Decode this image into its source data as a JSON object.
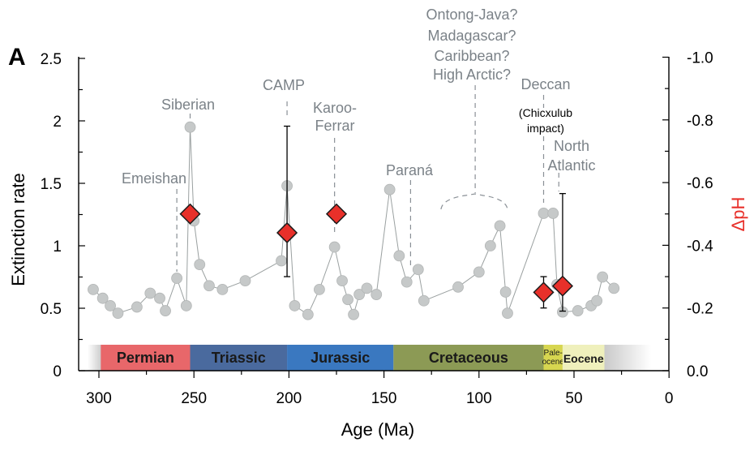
{
  "chart_data": {
    "type": "scatter",
    "panel_label": "A",
    "xlabel": "Age (Ma)",
    "ylabel_left": "Extinction rate",
    "ylabel_right": "ΔpH",
    "xlim": [
      305,
      0
    ],
    "ylim_left": [
      0,
      2.5
    ],
    "ylim_right": [
      0.0,
      -1.0
    ],
    "x_ticks": [
      300,
      250,
      200,
      150,
      100,
      50,
      0
    ],
    "y_left_ticks": [
      0,
      0.5,
      1,
      1.5,
      2,
      2.5
    ],
    "y_left_tick_labels": [
      "0",
      "0.5",
      "1",
      "1.5",
      "2",
      "2.5"
    ],
    "y_right_ticks": [
      0.0,
      -0.2,
      -0.4,
      -0.6,
      -0.8,
      -1.0
    ],
    "y_right_tick_labels": [
      "0.0",
      "-0.2",
      "-0.4",
      "-0.6",
      "-0.8",
      "-1.0"
    ],
    "series": [
      {
        "kind": "extinction_rate",
        "color": "#c6c9c9",
        "points": [
          [
            303,
            0.65
          ],
          [
            298,
            0.58
          ],
          [
            294,
            0.52
          ],
          [
            290,
            0.46
          ],
          [
            280,
            0.51
          ],
          [
            273,
            0.62
          ],
          [
            268,
            0.58
          ],
          [
            265,
            0.48
          ],
          [
            259,
            0.74
          ],
          [
            254,
            0.52
          ],
          [
            252,
            1.95
          ],
          [
            250,
            1.2
          ],
          [
            247,
            0.85
          ],
          [
            242,
            0.68
          ],
          [
            235,
            0.65
          ],
          [
            223,
            0.72
          ],
          [
            204,
            0.88
          ],
          [
            201,
            1.48
          ],
          [
            197,
            0.52
          ],
          [
            190,
            0.45
          ],
          [
            184,
            0.65
          ],
          [
            176,
            0.99
          ],
          [
            172,
            0.72
          ],
          [
            169,
            0.57
          ],
          [
            166,
            0.45
          ],
          [
            163,
            0.61
          ],
          [
            159,
            0.66
          ],
          [
            154,
            0.61
          ],
          [
            147,
            1.45
          ],
          [
            142,
            0.92
          ],
          [
            138,
            0.71
          ],
          [
            132,
            0.81
          ],
          [
            129,
            0.56
          ],
          [
            111,
            0.67
          ],
          [
            100,
            0.79
          ],
          [
            94,
            1.0
          ],
          [
            89,
            1.16
          ],
          [
            86,
            0.63
          ],
          [
            85,
            0.46
          ],
          [
            66,
            1.26
          ],
          [
            61,
            1.26
          ],
          [
            59,
            0.69
          ],
          [
            56,
            0.47
          ],
          [
            48,
            0.48
          ],
          [
            41,
            0.52
          ],
          [
            38,
            0.56
          ],
          [
            35,
            0.75
          ],
          [
            29,
            0.66
          ]
        ]
      },
      {
        "kind": "delta_ph",
        "color": "#e8302a",
        "points": [
          {
            "age": 252,
            "dph": -0.5
          },
          {
            "age": 201,
            "dph": -0.44,
            "err_low": -0.3,
            "err_high": -0.78
          },
          {
            "age": 175,
            "dph": -0.5
          },
          {
            "age": 66,
            "dph": -0.25,
            "err_low": -0.2,
            "err_high": -0.3
          },
          {
            "age": 56,
            "dph": -0.27,
            "err_low": -0.19,
            "err_high": -0.565
          }
        ]
      }
    ],
    "events": [
      {
        "label": "Emeishan",
        "age": 259
      },
      {
        "label": "Siberian",
        "age": 252
      },
      {
        "label": "CAMP",
        "age": 201
      },
      {
        "label": "Karoo-",
        "label2": "Ferrar",
        "age": 176
      },
      {
        "label": "Paraná",
        "age": 134
      },
      {
        "label": "Ontong-Java?",
        "label2": "Madagascar?",
        "label3": "Caribbean?",
        "label4": "High Arctic?",
        "age": 102
      },
      {
        "label": "Deccan",
        "age": 66
      },
      {
        "label": "(Chicxulub",
        "label2": "impact)",
        "age": 66
      },
      {
        "label": "North",
        "label2": "Atlantic",
        "age": 58
      }
    ],
    "periods": [
      {
        "name": "Permian",
        "start": 299,
        "end": 252,
        "color": "#e8676a"
      },
      {
        "name": "Triassic",
        "start": 252,
        "end": 201,
        "color": "#4a6a9e"
      },
      {
        "name": "Jurassic",
        "start": 201,
        "end": 145,
        "color": "#3a78c0"
      },
      {
        "name": "Cretaceous",
        "start": 145,
        "end": 66,
        "color": "#8c9a55"
      },
      {
        "name": "Pale-",
        "name2": "ocene",
        "start": 66,
        "end": 56,
        "color": "#d7d650"
      },
      {
        "name": "Eocene",
        "start": 56,
        "end": 34,
        "color": "#eff0bc"
      }
    ]
  }
}
